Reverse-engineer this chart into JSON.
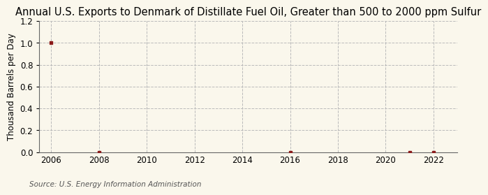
{
  "title": "Annual U.S. Exports to Denmark of Distillate Fuel Oil, Greater than 500 to 2000 ppm Sulfur",
  "ylabel": "Thousand Barrels per Day",
  "source": "Source: U.S. Energy Information Administration",
  "background_color": "#FAF7EC",
  "plot_bg_color": "#FAF7EC",
  "ylim": [
    0.0,
    1.2
  ],
  "yticks": [
    0.0,
    0.2,
    0.4,
    0.6,
    0.8,
    1.0,
    1.2
  ],
  "xlim": [
    2005.5,
    2023
  ],
  "xticks": [
    2006,
    2008,
    2010,
    2012,
    2014,
    2016,
    2018,
    2020,
    2022
  ],
  "data_x": [
    2006,
    2008,
    2016,
    2021,
    2022
  ],
  "data_y": [
    1.0,
    0.0,
    0.0,
    0.0,
    0.0
  ],
  "marker_color": "#8B1A1A",
  "marker_style": "s",
  "marker_size": 3,
  "grid_color": "#BBBBBB",
  "grid_style": "--",
  "title_fontsize": 10.5,
  "label_fontsize": 8.5,
  "tick_fontsize": 8.5,
  "source_fontsize": 7.5,
  "spine_color": "#666666"
}
